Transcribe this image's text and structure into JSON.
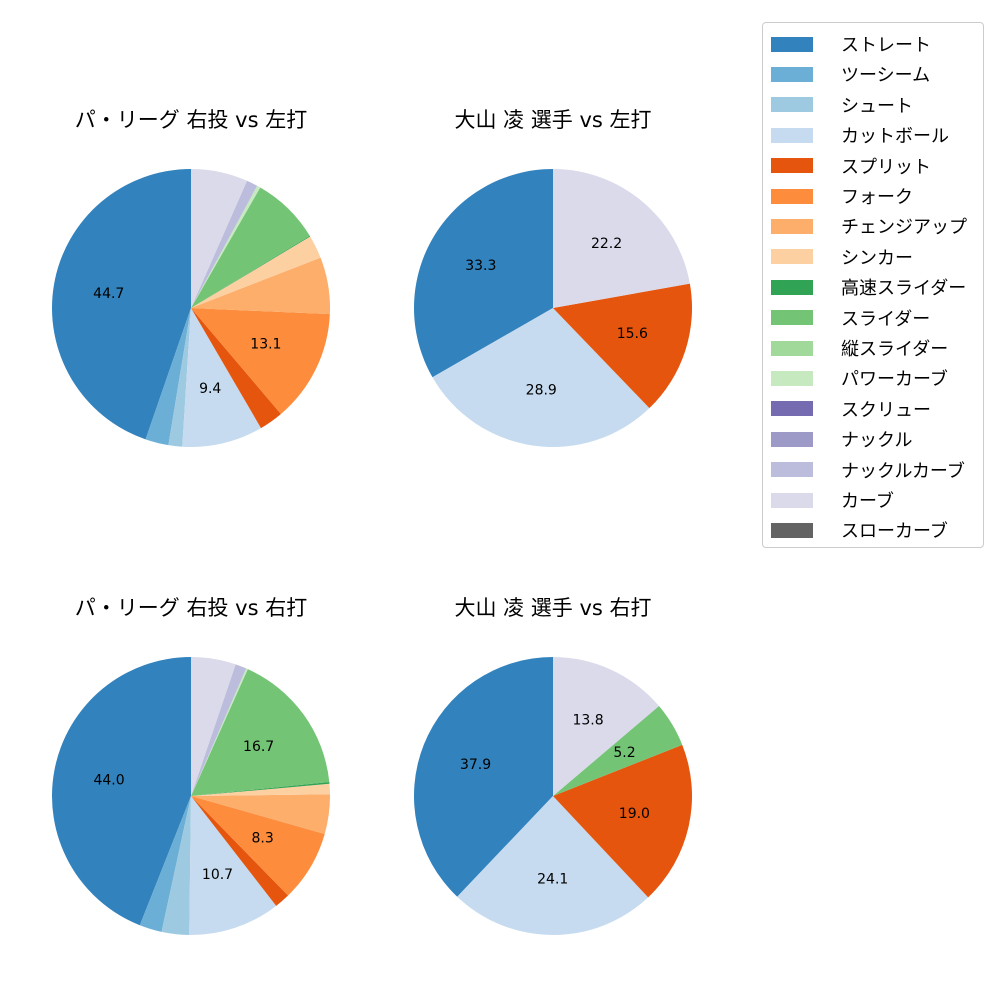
{
  "legend": {
    "items": [
      {
        "label": "ストレート",
        "color": "#3182bd"
      },
      {
        "label": "ツーシーム",
        "color": "#6baed6"
      },
      {
        "label": "シュート",
        "color": "#9ecae1"
      },
      {
        "label": "カットボール",
        "color": "#c6dbef"
      },
      {
        "label": "スプリット",
        "color": "#e6550d"
      },
      {
        "label": "フォーク",
        "color": "#fd8d3c"
      },
      {
        "label": "チェンジアップ",
        "color": "#fdae6b"
      },
      {
        "label": "シンカー",
        "color": "#fdd0a2"
      },
      {
        "label": "高速スライダー",
        "color": "#31a354"
      },
      {
        "label": "スライダー",
        "color": "#74c476"
      },
      {
        "label": "縦スライダー",
        "color": "#a1d99b"
      },
      {
        "label": "パワーカーブ",
        "color": "#c7e9c0"
      },
      {
        "label": "スクリュー",
        "color": "#756bb1"
      },
      {
        "label": "ナックル",
        "color": "#9e9ac8"
      },
      {
        "label": "ナックルカーブ",
        "color": "#bcbddc"
      },
      {
        "label": "カーブ",
        "color": "#dadaeb"
      },
      {
        "label": "スローカーブ",
        "color": "#636363"
      }
    ]
  },
  "chart_data": [
    {
      "type": "pie",
      "title": "パ・リーグ 右投 vs 左打",
      "categories": [
        "ストレート",
        "ツーシーム",
        "シュート",
        "カットボール",
        "スプリット",
        "フォーク",
        "チェンジアップ",
        "シンカー",
        "高速スライダー",
        "スライダー",
        "パワーカーブ",
        "ナックルカーブ",
        "カーブ"
      ],
      "values": [
        44.7,
        2.7,
        1.6,
        9.4,
        2.8,
        13.1,
        6.6,
        2.7,
        0.1,
        8.0,
        0.4,
        1.3,
        6.6
      ],
      "labels_shown": [
        "44.7",
        "",
        "",
        "9.4",
        "",
        "13.1",
        "",
        "",
        "",
        "",
        "",
        "",
        ""
      ],
      "start_angle": 90,
      "direction": "counterclockwise"
    },
    {
      "type": "pie",
      "title": "大山 凌 選手 vs 左打",
      "categories": [
        "ストレート",
        "カットボール",
        "スプリット",
        "カーブ"
      ],
      "values": [
        33.3,
        28.9,
        15.6,
        22.2
      ],
      "labels_shown": [
        "33.3",
        "28.9",
        "15.6",
        "22.2"
      ],
      "start_angle": 90,
      "direction": "counterclockwise"
    },
    {
      "type": "pie",
      "title": "パ・リーグ 右投 vs 右打",
      "categories": [
        "ストレート",
        "ツーシーム",
        "シュート",
        "カットボール",
        "スプリット",
        "フォーク",
        "チェンジアップ",
        "シンカー",
        "高速スライダー",
        "スライダー",
        "パワーカーブ",
        "ナックルカーブ",
        "カーブ"
      ],
      "values": [
        44.0,
        2.6,
        3.2,
        10.7,
        1.8,
        8.3,
        4.6,
        1.2,
        0.2,
        16.7,
        0.2,
        1.3,
        5.2
      ],
      "labels_shown": [
        "44.0",
        "",
        "",
        "10.7",
        "",
        "8.3",
        "",
        "",
        "",
        "16.7",
        "",
        "",
        ""
      ],
      "start_angle": 90,
      "direction": "counterclockwise"
    },
    {
      "type": "pie",
      "title": "大山 凌 選手 vs 右打",
      "categories": [
        "ストレート",
        "カットボール",
        "スプリット",
        "スライダー",
        "カーブ"
      ],
      "values": [
        37.9,
        24.1,
        19.0,
        5.2,
        13.8
      ],
      "labels_shown": [
        "37.9",
        "24.1",
        "19.0",
        "5.2",
        "13.8"
      ],
      "start_angle": 90,
      "direction": "counterclockwise"
    }
  ]
}
